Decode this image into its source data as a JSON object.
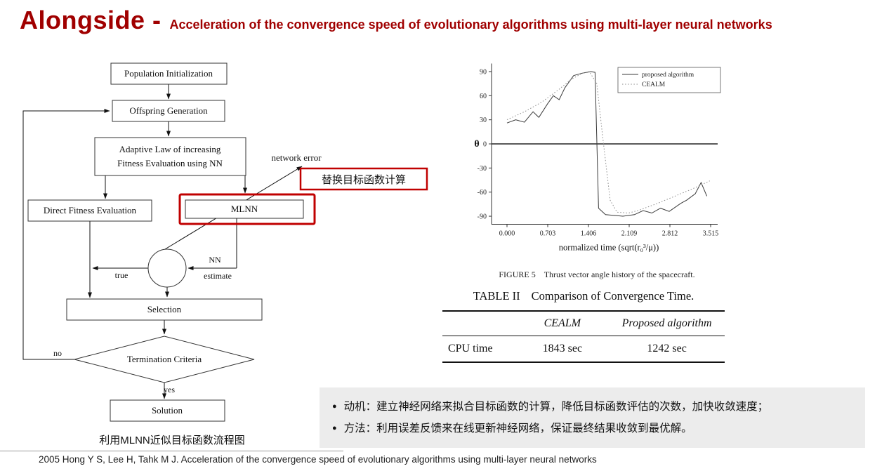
{
  "colors": {
    "accent_red": "#c00000",
    "title_red": "#a00000",
    "panel_gray": "#ececec"
  },
  "header": {
    "title": "Alongside -",
    "subtitle": "Acceleration of the convergence speed of evolutionary algorithms using multi-layer neural networks"
  },
  "flowchart": {
    "nodes": {
      "population": "Population Initialization",
      "offspring": "Offspring Generation",
      "adaptive1": "Adaptive Law of increasing",
      "adaptive2": "Fitness Evaluation using NN",
      "direct": "Direct Fitness Evaluation",
      "mlnn": "MLNN",
      "selection": "Selection",
      "termination": "Termination Criteria",
      "solution": "Solution"
    },
    "labels": {
      "network_error": "network error",
      "replace_note": "替换目标函数计算",
      "true_label": "true",
      "nn": "NN",
      "estimate": "estimate",
      "no": "no",
      "yes": "yes"
    },
    "caption": "利用MLNN近似目标函数流程图"
  },
  "chart_data": {
    "type": "line",
    "title": "",
    "xlabel": "normalized time (sqrt(r₀³/μ))",
    "ylabel": "θ",
    "xlim": [
      0,
      3.515
    ],
    "ylim": [
      -100,
      100
    ],
    "yticks": [
      90,
      60,
      30,
      0,
      -30,
      -60,
      -90
    ],
    "xticks": [
      0,
      0.703,
      1.406,
      2.109,
      2.812,
      3.515
    ],
    "xtick_labels": [
      "0.000",
      "0.703",
      "1.406",
      "2.109",
      "2.812",
      "3.515"
    ],
    "grid": false,
    "legend_position": "top-right",
    "series": [
      {
        "name": "proposed algorithm",
        "style": "solid",
        "points": [
          [
            0,
            26
          ],
          [
            0.15,
            30
          ],
          [
            0.3,
            27
          ],
          [
            0.45,
            40
          ],
          [
            0.55,
            33
          ],
          [
            0.7,
            50
          ],
          [
            0.8,
            60
          ],
          [
            0.9,
            55
          ],
          [
            1.0,
            70
          ],
          [
            1.15,
            85
          ],
          [
            1.3,
            88
          ],
          [
            1.45,
            90
          ],
          [
            1.52,
            89
          ],
          [
            1.58,
            -80
          ],
          [
            1.7,
            -88
          ],
          [
            2.0,
            -90
          ],
          [
            2.2,
            -88
          ],
          [
            2.35,
            -83
          ],
          [
            2.5,
            -86
          ],
          [
            2.65,
            -80
          ],
          [
            2.8,
            -84
          ],
          [
            3.0,
            -74
          ],
          [
            3.1,
            -70
          ],
          [
            3.25,
            -62
          ],
          [
            3.35,
            -48
          ],
          [
            3.45,
            -65
          ]
        ]
      },
      {
        "name": "CEALM",
        "style": "dotted",
        "points": [
          [
            0,
            30
          ],
          [
            0.3,
            40
          ],
          [
            0.6,
            52
          ],
          [
            0.9,
            68
          ],
          [
            1.1,
            80
          ],
          [
            1.3,
            88
          ],
          [
            1.42,
            90
          ],
          [
            1.55,
            75
          ],
          [
            1.65,
            10
          ],
          [
            1.78,
            -70
          ],
          [
            1.9,
            -85
          ],
          [
            2.1,
            -86
          ],
          [
            2.3,
            -82
          ],
          [
            2.6,
            -74
          ],
          [
            2.9,
            -65
          ],
          [
            3.2,
            -56
          ],
          [
            3.5,
            -46
          ]
        ]
      }
    ],
    "figure_label": "FIGURE 5",
    "figure_caption": "Thrust vector angle history of the spacecraft."
  },
  "table": {
    "label": "TABLE II",
    "title": "Comparison of Convergence Time.",
    "columns": [
      "CEALM",
      "Proposed algorithm"
    ],
    "row_header": "CPU time",
    "values": [
      "1843 sec",
      "1242 sec"
    ]
  },
  "notes": {
    "marker": "●",
    "items": [
      "动机：建立神经网络来拟合目标函数的计算，降低目标函数评估的次数，加快收敛速度；",
      "方法：利用误差反馈来在线更新神经网络，保证最终结果收敛到最优解。"
    ]
  },
  "footer": "2005 Hong Y S, Lee H, Tahk M J. Acceleration of the convergence speed of evolutionary algorithms using multi-layer neural networks"
}
